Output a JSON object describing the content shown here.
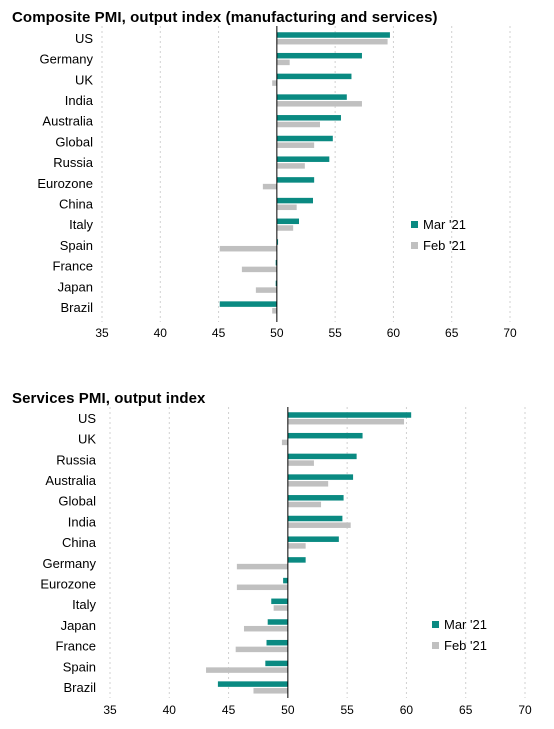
{
  "colors": {
    "current": "#0a8a82",
    "previous": "#c0c0c0"
  },
  "chart_data": [
    {
      "type": "bar",
      "orientation": "horizontal",
      "title": "Composite PMI, output index (manufacturing and services)",
      "categories": [
        "US",
        "Germany",
        "UK",
        "India",
        "Australia",
        "Global",
        "Russia",
        "Eurozone",
        "China",
        "Italy",
        "Spain",
        "France",
        "Japan",
        "Brazil"
      ],
      "series": [
        {
          "name": "Mar '21",
          "values": [
            59.7,
            57.3,
            56.4,
            56.0,
            55.5,
            54.8,
            54.5,
            53.2,
            53.1,
            51.9,
            50.1,
            49.9,
            49.9,
            45.1
          ]
        },
        {
          "name": "Feb '21",
          "values": [
            59.5,
            51.1,
            49.6,
            57.3,
            53.7,
            53.2,
            52.4,
            48.8,
            51.7,
            51.4,
            45.1,
            47.0,
            48.2,
            49.6
          ]
        }
      ],
      "xlim": [
        35,
        70
      ],
      "xticks": [
        35,
        40,
        45,
        50,
        55,
        60,
        65,
        70
      ],
      "baseline": 50,
      "grid": true,
      "legend_position": "right"
    },
    {
      "type": "bar",
      "orientation": "horizontal",
      "title": "Services PMI, output index",
      "categories": [
        "US",
        "UK",
        "Russia",
        "Australia",
        "Global",
        "India",
        "China",
        "Germany",
        "Eurozone",
        "Italy",
        "Japan",
        "France",
        "Spain",
        "Brazil"
      ],
      "series": [
        {
          "name": "Mar '21",
          "values": [
            60.4,
            56.3,
            55.8,
            55.5,
            54.7,
            54.6,
            54.3,
            51.5,
            49.6,
            48.6,
            48.3,
            48.2,
            48.1,
            44.1
          ]
        },
        {
          "name": "Feb '21",
          "values": [
            59.8,
            49.5,
            52.2,
            53.4,
            52.8,
            55.3,
            51.5,
            45.7,
            45.7,
            48.8,
            46.3,
            45.6,
            43.1,
            47.1
          ]
        }
      ],
      "xlim": [
        35,
        70
      ],
      "xticks": [
        35,
        40,
        45,
        50,
        55,
        60,
        65,
        70
      ],
      "baseline": 50,
      "grid": true,
      "legend_position": "right"
    }
  ]
}
